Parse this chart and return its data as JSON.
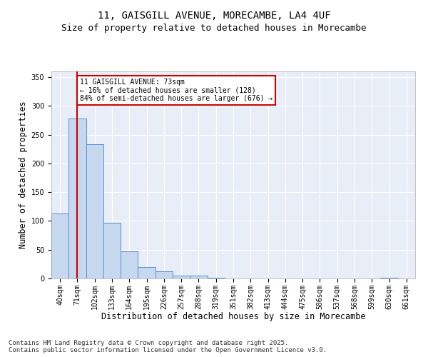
{
  "title1": "11, GAISGILL AVENUE, MORECAMBE, LA4 4UF",
  "title2": "Size of property relative to detached houses in Morecambe",
  "xlabel": "Distribution of detached houses by size in Morecambe",
  "ylabel": "Number of detached properties",
  "categories": [
    "40sqm",
    "71sqm",
    "102sqm",
    "133sqm",
    "164sqm",
    "195sqm",
    "226sqm",
    "257sqm",
    "288sqm",
    "319sqm",
    "351sqm",
    "382sqm",
    "413sqm",
    "444sqm",
    "475sqm",
    "506sqm",
    "537sqm",
    "568sqm",
    "599sqm",
    "630sqm",
    "661sqm"
  ],
  "values": [
    113,
    278,
    233,
    97,
    47,
    20,
    12,
    5,
    5,
    1,
    0,
    0,
    0,
    0,
    0,
    0,
    0,
    0,
    0,
    1,
    0
  ],
  "bar_color": "#c5d8f0",
  "bar_edge_color": "#5b8fc9",
  "vline_x": 1,
  "vline_color": "#cc0000",
  "annotation_text": "11 GAISGILL AVENUE: 73sqm\n← 16% of detached houses are smaller (128)\n84% of semi-detached houses are larger (676) →",
  "annotation_box_color": "#ffffff",
  "annotation_box_edge_color": "#cc0000",
  "ylim": [
    0,
    360
  ],
  "yticks": [
    0,
    50,
    100,
    150,
    200,
    250,
    300,
    350
  ],
  "background_color": "#e8eef8",
  "footer1": "Contains HM Land Registry data © Crown copyright and database right 2025.",
  "footer2": "Contains public sector information licensed under the Open Government Licence v3.0.",
  "title_fontsize": 10,
  "subtitle_fontsize": 9,
  "tick_fontsize": 7,
  "label_fontsize": 8.5,
  "footer_fontsize": 6.5
}
